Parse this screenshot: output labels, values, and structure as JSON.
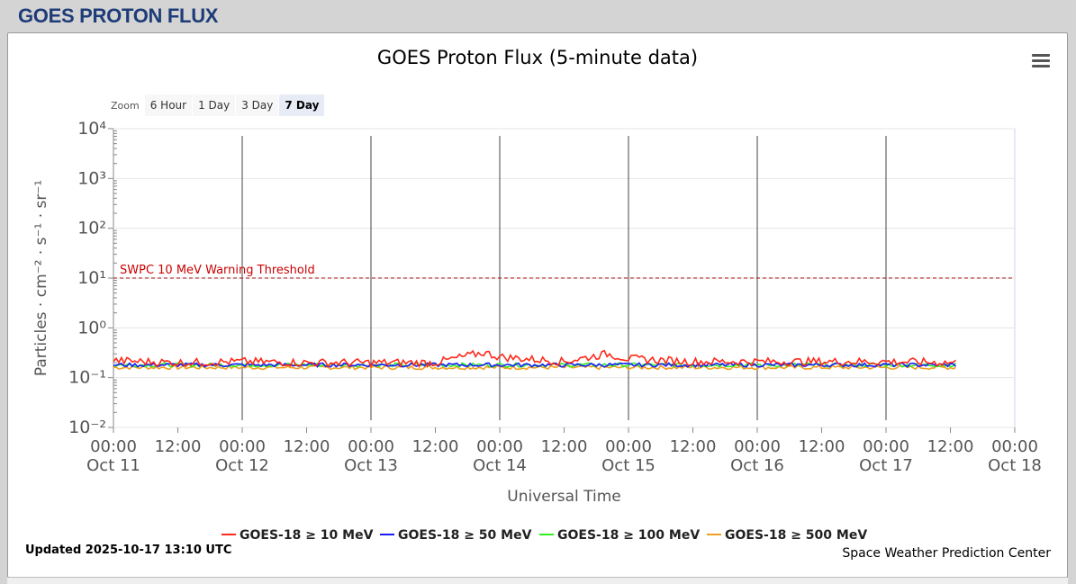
{
  "page": {
    "header": "GOES PROTON FLUX"
  },
  "chart_title": "GOES Proton Flux (5-minute data)",
  "zoom": {
    "label": "Zoom",
    "buttons": [
      "6 Hour",
      "1 Day",
      "3 Day",
      "7 Day"
    ],
    "selected": "7 Day"
  },
  "footer": {
    "updated": "Updated 2025-10-17 13:10 UTC",
    "credit": "Space Weather Prediction Center"
  },
  "chart_data": {
    "type": "line",
    "title": "GOES Proton Flux (5-minute data)",
    "xlabel": "Universal Time",
    "ylabel": "Particles · cm⁻² · s⁻¹ · sr⁻¹",
    "y_scale": "log",
    "ylim": [
      0.01,
      10000
    ],
    "y_ticks": [
      "10⁻²",
      "10⁻¹",
      "10⁰",
      "10¹",
      "10²",
      "10³",
      "10⁴"
    ],
    "xlim": [
      "2025-10-11 00:00",
      "2025-10-18 00:00"
    ],
    "x_ticks": [
      {
        "time": "00:00",
        "date": "Oct 11"
      },
      {
        "time": "12:00",
        "date": ""
      },
      {
        "time": "00:00",
        "date": "Oct 12"
      },
      {
        "time": "12:00",
        "date": ""
      },
      {
        "time": "00:00",
        "date": "Oct 13"
      },
      {
        "time": "12:00",
        "date": ""
      },
      {
        "time": "00:00",
        "date": "Oct 14"
      },
      {
        "time": "12:00",
        "date": ""
      },
      {
        "time": "00:00",
        "date": "Oct 15"
      },
      {
        "time": "12:00",
        "date": ""
      },
      {
        "time": "00:00",
        "date": "Oct 16"
      },
      {
        "time": "12:00",
        "date": ""
      },
      {
        "time": "00:00",
        "date": "Oct 17"
      },
      {
        "time": "12:00",
        "date": ""
      },
      {
        "time": "00:00",
        "date": "Oct 18"
      }
    ],
    "threshold": {
      "label": "SWPC 10 MeV Warning Threshold",
      "value": 10,
      "color": "#cc0000"
    },
    "grid": true,
    "legend_position": "bottom-center",
    "series": [
      {
        "name": "GOES-18 ≥ 10 MeV",
        "color": "#ff2a1a",
        "x": [
          "2025-10-11 00:00",
          "2025-10-11 12:00",
          "2025-10-12 00:00",
          "2025-10-12 12:00",
          "2025-10-13 00:00",
          "2025-10-13 12:00",
          "2025-10-13 21:00",
          "2025-10-14 00:00",
          "2025-10-14 12:00",
          "2025-10-14 20:00",
          "2025-10-15 00:00",
          "2025-10-15 12:00",
          "2025-10-16 00:00",
          "2025-10-16 12:00",
          "2025-10-17 00:00",
          "2025-10-17 13:00"
        ],
        "y": [
          0.22,
          0.2,
          0.21,
          0.2,
          0.2,
          0.2,
          0.32,
          0.26,
          0.21,
          0.3,
          0.24,
          0.21,
          0.21,
          0.21,
          0.21,
          0.2
        ]
      },
      {
        "name": "GOES-18 ≥ 50 MeV",
        "color": "#1a1aff",
        "x": [
          "2025-10-11 00:00",
          "2025-10-12 00:00",
          "2025-10-13 00:00",
          "2025-10-14 00:00",
          "2025-10-15 00:00",
          "2025-10-16 00:00",
          "2025-10-17 00:00",
          "2025-10-17 13:00"
        ],
        "y": [
          0.18,
          0.18,
          0.18,
          0.18,
          0.18,
          0.18,
          0.18,
          0.18
        ]
      },
      {
        "name": "GOES-18 ≥ 100 MeV",
        "color": "#33ee22",
        "x": [
          "2025-10-11 00:00",
          "2025-10-12 00:00",
          "2025-10-13 00:00",
          "2025-10-14 00:00",
          "2025-10-15 00:00",
          "2025-10-16 00:00",
          "2025-10-17 00:00",
          "2025-10-17 13:00"
        ],
        "y": [
          0.18,
          0.18,
          0.18,
          0.18,
          0.18,
          0.18,
          0.18,
          0.18
        ]
      },
      {
        "name": "GOES-18 ≥ 500 MeV",
        "color": "#f0a020",
        "x": [
          "2025-10-11 00:00",
          "2025-10-12 00:00",
          "2025-10-13 00:00",
          "2025-10-14 00:00",
          "2025-10-15 00:00",
          "2025-10-16 00:00",
          "2025-10-17 00:00",
          "2025-10-17 13:00"
        ],
        "y": [
          0.16,
          0.16,
          0.16,
          0.16,
          0.16,
          0.16,
          0.16,
          0.16
        ]
      }
    ]
  }
}
